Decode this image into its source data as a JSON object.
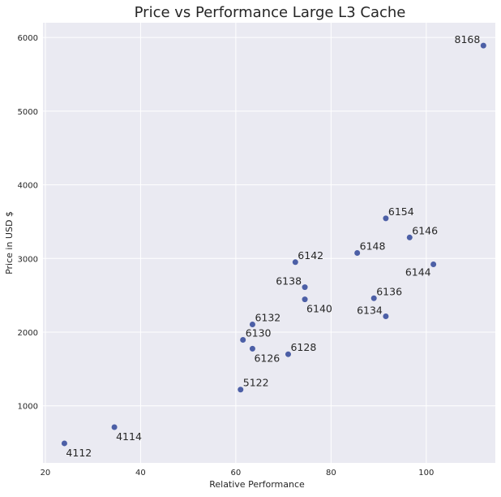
{
  "chart_data": {
    "type": "scatter",
    "title": "Price vs Performance Large L3 Cache",
    "xlabel": "Relative Performance",
    "ylabel": "Price in USD $",
    "xlim": [
      19.5,
      114.5
    ],
    "ylim": [
      225,
      6200
    ],
    "xticks": [
      20,
      40,
      60,
      80,
      100
    ],
    "yticks": [
      1000,
      2000,
      3000,
      4000,
      5000,
      6000
    ],
    "grid": true,
    "colors": {
      "background": "#eaeaf2",
      "grid": "#ffffff",
      "marker": "#4c5fa6",
      "text": "#262626"
    },
    "points": [
      {
        "label": "8168",
        "x": 112.0,
        "y": 5890,
        "label_anchor": "left"
      },
      {
        "label": "6154",
        "x": 91.5,
        "y": 3545,
        "label_anchor": "right"
      },
      {
        "label": "6146",
        "x": 96.5,
        "y": 3285,
        "label_anchor": "right"
      },
      {
        "label": "6148",
        "x": 85.5,
        "y": 3075,
        "label_anchor": "right"
      },
      {
        "label": "6144",
        "x": 101.5,
        "y": 2920,
        "label_anchor": "left-below"
      },
      {
        "label": "6142",
        "x": 72.5,
        "y": 2950,
        "label_anchor": "right"
      },
      {
        "label": "6138",
        "x": 74.5,
        "y": 2610,
        "label_anchor": "left"
      },
      {
        "label": "6140",
        "x": 74.5,
        "y": 2445,
        "label_anchor": "right-below"
      },
      {
        "label": "6136",
        "x": 89.0,
        "y": 2460,
        "label_anchor": "right"
      },
      {
        "label": "6134",
        "x": 91.5,
        "y": 2215,
        "label_anchor": "left"
      },
      {
        "label": "6132",
        "x": 63.5,
        "y": 2105,
        "label_anchor": "right"
      },
      {
        "label": "6130",
        "x": 61.5,
        "y": 1895,
        "label_anchor": "right"
      },
      {
        "label": "6126",
        "x": 63.5,
        "y": 1775,
        "label_anchor": "right-below"
      },
      {
        "label": "6128",
        "x": 71.0,
        "y": 1700,
        "label_anchor": "right"
      },
      {
        "label": "5122",
        "x": 61.0,
        "y": 1220,
        "label_anchor": "right"
      },
      {
        "label": "4114",
        "x": 34.5,
        "y": 710,
        "label_anchor": "right-below"
      },
      {
        "label": "4112",
        "x": 24.0,
        "y": 490,
        "label_anchor": "right-below"
      }
    ]
  }
}
